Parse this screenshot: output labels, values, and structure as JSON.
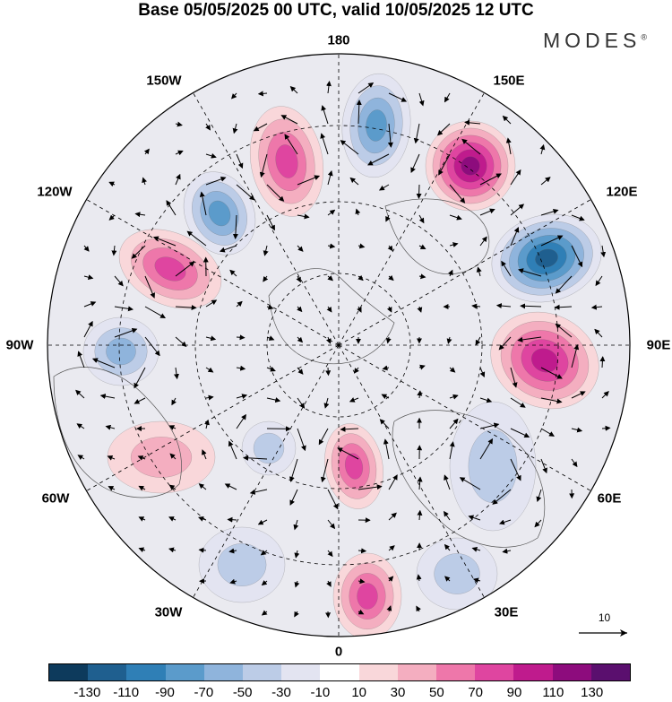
{
  "title": "Base 05/05/2025 00 UTC, valid 10/05/2025 12 UTC",
  "brand": "MODES",
  "brand_mark": "®",
  "longitude_labels": [
    "180",
    "150E",
    "120E",
    "90E",
    "60E",
    "30E",
    "0",
    "30W",
    "60W",
    "90W",
    "120W",
    "150W"
  ],
  "reference_vector": {
    "value": "10"
  },
  "colorbar": {
    "colors": [
      "#0d3a5c",
      "#1f5f8f",
      "#2f7fb6",
      "#5b9bcb",
      "#8fb4dc",
      "#bccce7",
      "#e3e4f1",
      "#ffffff",
      "#f9d7da",
      "#f4aec0",
      "#ee77aa",
      "#df45a0",
      "#bf1b8d",
      "#8d0c7d",
      "#5a0f6e"
    ],
    "tick_labels": [
      "-130",
      "-110",
      "-90",
      "-70",
      "-50",
      "-30",
      "-10",
      "10",
      "30",
      "50",
      "70",
      "90",
      "110",
      "130"
    ]
  },
  "map_data": {
    "projection": "north-polar-stereographic",
    "field": "geopotential height anomaly with wind vectors",
    "anomalies": [
      {
        "lon_label": "150W-180",
        "sign": "positive",
        "level": 70
      },
      {
        "lon_label": "165W-180",
        "sign": "negative",
        "level": -70
      },
      {
        "lon_label": "150E",
        "sign": "positive",
        "level": 110
      },
      {
        "lon_label": "120E",
        "sign": "negative",
        "level": -110
      },
      {
        "lon_label": "90E",
        "sign": "positive",
        "level": 90
      },
      {
        "lon_label": "150W",
        "sign": "negative",
        "level": -70
      },
      {
        "lon_label": "120W",
        "sign": "positive",
        "level": 70
      },
      {
        "lon_label": "90W",
        "sign": "negative",
        "level": -50
      },
      {
        "lon_label": "0",
        "sign": "positive",
        "level": 70
      },
      {
        "lon_label": "30W",
        "sign": "negative",
        "level": -30
      },
      {
        "lon_label": "60E",
        "sign": "negative",
        "level": -30
      }
    ]
  }
}
